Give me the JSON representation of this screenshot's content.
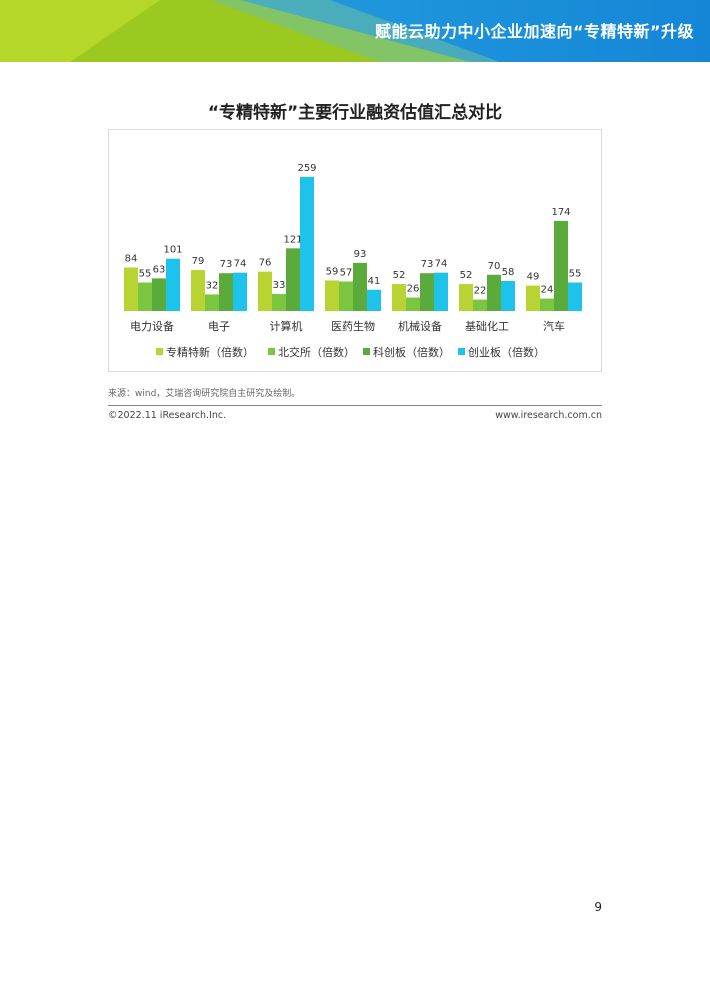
{
  "header": {
    "title": "赋能云助力中小企业加速向“专精特新”升级"
  },
  "colors": {
    "lime": "#b8d433",
    "green": "#7cc53f",
    "dark_green": "#5aab3c",
    "cyan": "#1ec3ec",
    "blue": "#1a8cdc"
  },
  "chart_data": {
    "type": "bar",
    "title": "“专精特新”主要行业融资估值汇总对比",
    "categories": [
      "电力设备",
      "电子",
      "计算机",
      "医药生物",
      "机械设备",
      "基础化工",
      "汽车"
    ],
    "series": [
      {
        "name": "专精特新（倍数）",
        "color": "#b8d433",
        "values": [
          84,
          79,
          76,
          59,
          52,
          52,
          49
        ]
      },
      {
        "name": "北交所（倍数）",
        "color": "#7cc53f",
        "values": [
          55,
          32,
          33,
          57,
          26,
          22,
          24
        ]
      },
      {
        "name": "科创板（倍数）",
        "color": "#5aab3c",
        "values": [
          63,
          73,
          121,
          93,
          73,
          70,
          174
        ]
      },
      {
        "name": "创业板（倍数）",
        "color": "#1ec3ec",
        "values": [
          101,
          74,
          259,
          41,
          74,
          58,
          55
        ]
      }
    ],
    "ylim": [
      0,
      280
    ],
    "legend": "bottom",
    "grid": false
  },
  "footer": {
    "source": "来源：wind，艾瑞咨询研究院自主研究及绘制。",
    "copyright": "©2022.11 iResearch.Inc.",
    "website": "www.iresearch.com.cn",
    "page": "9"
  }
}
